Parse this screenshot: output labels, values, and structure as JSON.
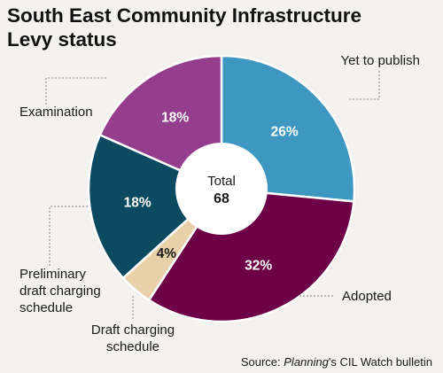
{
  "title_line1": "South East Community Infrastructure",
  "title_line2": "Levy status",
  "source": {
    "prefix": "Source: ",
    "italic": "Planning",
    "suffix": "'s CIL Watch bulletin"
  },
  "colors": {
    "background": "#f3f2ef",
    "yet_to_publish": "#3d97c0",
    "adopted": "#6e0047",
    "draft_charging_schedule": "#e8d0a9",
    "preliminary_draft_charging_schedule": "#0b4a60",
    "examination": "#953e8e"
  },
  "chart_data": {
    "type": "pie",
    "donut": true,
    "center_label": "Total",
    "center_value": "68",
    "slices": [
      {
        "key": "yet_to_publish",
        "value": 26,
        "pct_label": "26%",
        "label_lines": [
          "Yet to publish"
        ],
        "color": "#3d97c0",
        "pct_color": "#ffffff"
      },
      {
        "key": "adopted",
        "value": 32,
        "pct_label": "32%",
        "label_lines": [
          "Adopted"
        ],
        "color": "#6e0047",
        "pct_color": "#ffffff"
      },
      {
        "key": "draft_charging_schedule",
        "value": 4,
        "pct_label": "4%",
        "label_lines": [
          "Draft charging",
          "schedule"
        ],
        "color": "#e8d0a9",
        "pct_color": "#1a1a1a"
      },
      {
        "key": "preliminary_draft_charging_schedule",
        "value": 18,
        "pct_label": "18%",
        "label_lines": [
          "Preliminary",
          "draft charging",
          "schedule"
        ],
        "color": "#0b4a60",
        "pct_color": "#ffffff"
      },
      {
        "key": "examination",
        "value": 18,
        "pct_label": "18%",
        "label_lines": [
          "Examination"
        ],
        "color": "#953e8e",
        "pct_color": "#ffffff"
      }
    ]
  }
}
